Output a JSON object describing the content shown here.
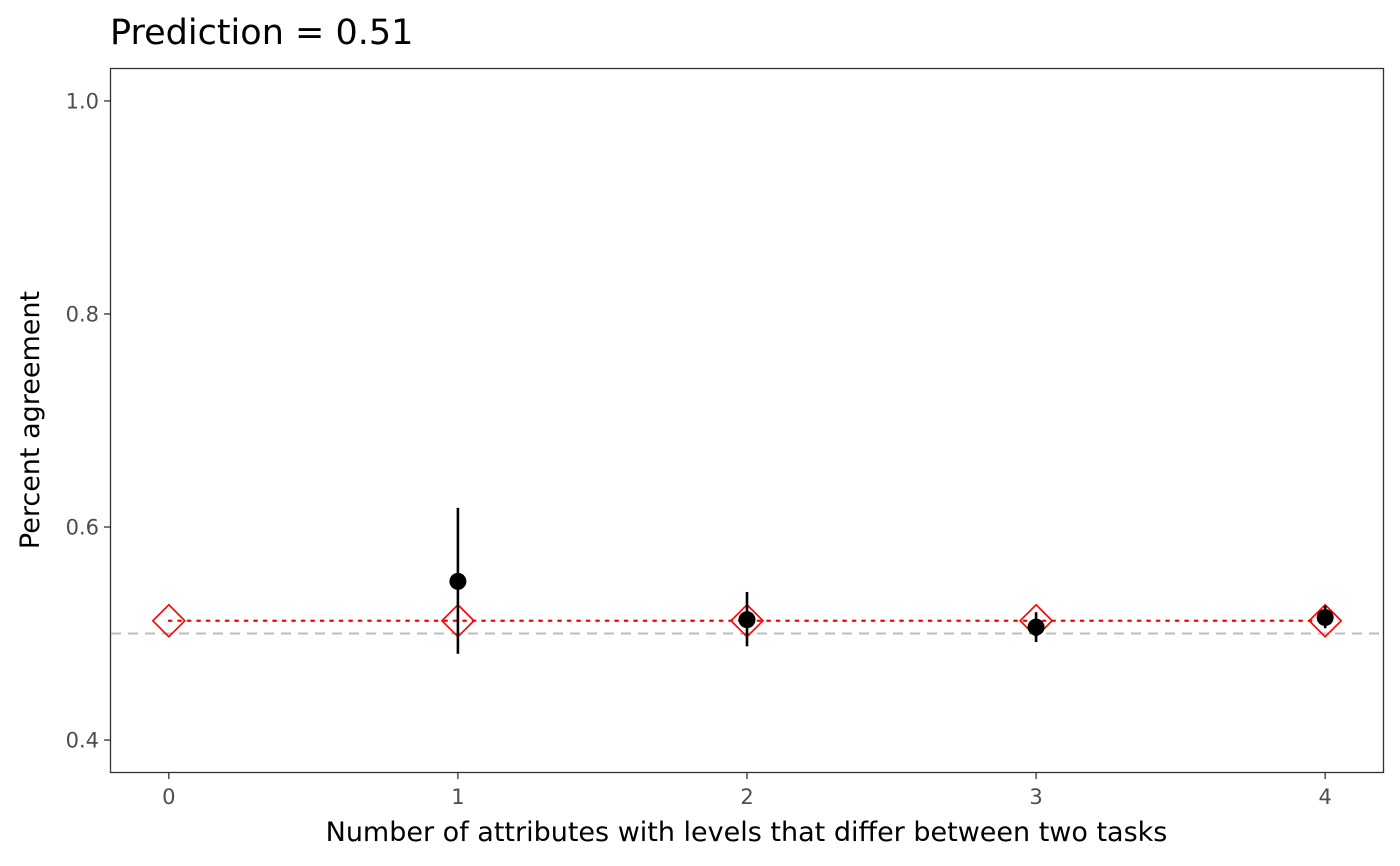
{
  "chart_data": {
    "type": "scatter",
    "title": "Prediction = 0.51",
    "xlabel": "Number of attributes with levels that differ between two tasks",
    "ylabel": "Percent agreement",
    "x_ticks": [
      "0",
      "1",
      "2",
      "3",
      "4"
    ],
    "y_ticks": [
      "0.4",
      "0.6",
      "0.8",
      "1.0"
    ],
    "xlim": [
      -0.2,
      4.2
    ],
    "ylim": [
      0.37,
      1.03
    ],
    "grid": false,
    "reference_line": {
      "y": 0.5,
      "style": "dashed",
      "color": "#bebebe"
    },
    "prediction": {
      "marker": "open-diamond",
      "color": "#ff0000",
      "line_style": "dotted",
      "x": [
        0,
        1,
        2,
        3,
        4
      ],
      "y": [
        0.512,
        0.512,
        0.512,
        0.512,
        0.512
      ]
    },
    "observed": {
      "marker": "filled-circle",
      "color": "#000000",
      "x": [
        1,
        2,
        3,
        4
      ],
      "y": [
        0.549,
        0.513,
        0.506,
        0.515
      ],
      "lower": [
        0.481,
        0.488,
        0.492,
        0.505
      ],
      "upper": [
        0.618,
        0.539,
        0.52,
        0.526
      ]
    }
  }
}
